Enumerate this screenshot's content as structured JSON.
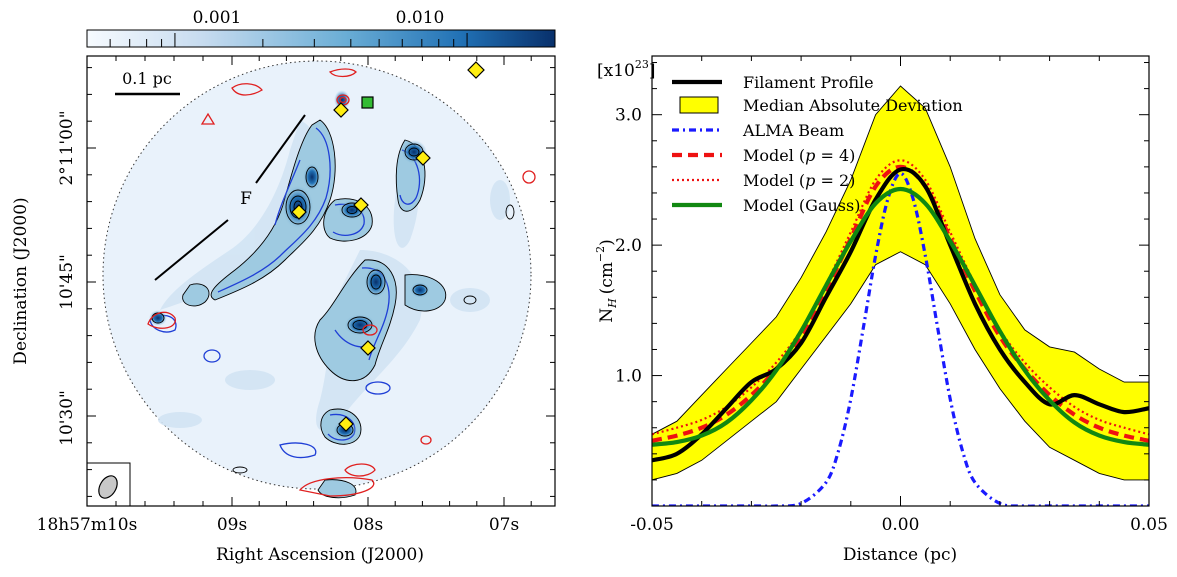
{
  "chart_data": [
    {
      "type": "heatmap",
      "colorbar": {
        "tick_labels": [
          "0.001",
          "0.010"
        ],
        "colors": [
          "#f7fbff",
          "#c6dbef",
          "#6baed6",
          "#2171b5",
          "#08306b"
        ]
      },
      "xlabel": "Right Ascension (J2000)",
      "ylabel": "Declination (J2000)",
      "x_tick_labels": [
        "18h57m10s",
        "09s",
        "08s",
        "07s"
      ],
      "y_tick_labels": [
        "2°11'00\"",
        "10'45\"",
        "10'30\""
      ],
      "scalebar_label": "0.1 pc",
      "filament_label": "F",
      "contour_colors": {
        "dust": "#000000",
        "molecular": "#1f3fd6",
        "other": "#e02020"
      },
      "marker_colors": {
        "diamond": "#ffee11",
        "square": "#33bb33"
      }
    },
    {
      "type": "line",
      "ylabel_main": "N",
      "ylabel_sub": "H",
      "ylabel_unit": "(cm",
      "ylabel_exp": "−2",
      "ylabel_close": ")",
      "xlabel": "Distance (pc)",
      "y_multiplier_base": "[x10",
      "y_multiplier_exp": "23",
      "y_multiplier_close": "]",
      "xlim": [
        -0.05,
        0.05
      ],
      "ylim": [
        0.0,
        3.45
      ],
      "x_ticks": [
        -0.05,
        0.0,
        0.05
      ],
      "x_tick_labels": [
        "-0.05",
        "0.00",
        "0.05"
      ],
      "y_ticks": [
        1.0,
        2.0,
        3.0
      ],
      "y_tick_labels": [
        "1.0",
        "2.0",
        "3.0"
      ],
      "legend_position": "top-left",
      "mad_band": {
        "name": "Median Absolute Deviation",
        "color": "#ffff00",
        "x": [
          -0.05,
          -0.045,
          -0.04,
          -0.035,
          -0.03,
          -0.025,
          -0.02,
          -0.015,
          -0.01,
          -0.005,
          0.0,
          0.005,
          0.01,
          0.015,
          0.02,
          0.025,
          0.03,
          0.035,
          0.04,
          0.045,
          0.05
        ],
        "upper": [
          0.55,
          0.65,
          0.85,
          1.05,
          1.25,
          1.45,
          1.75,
          2.1,
          2.5,
          3.0,
          3.22,
          3.05,
          2.6,
          2.05,
          1.62,
          1.35,
          1.22,
          1.18,
          1.05,
          0.95,
          0.95
        ],
        "lower": [
          0.2,
          0.25,
          0.35,
          0.5,
          0.65,
          0.8,
          1.05,
          1.3,
          1.55,
          1.85,
          1.95,
          1.85,
          1.55,
          1.2,
          0.9,
          0.65,
          0.45,
          0.35,
          0.25,
          0.2,
          0.2
        ]
      },
      "series": [
        {
          "name": "Filament Profile",
          "color": "#000000",
          "dash": "",
          "width": 4.2,
          "x": [
            -0.05,
            -0.045,
            -0.04,
            -0.035,
            -0.03,
            -0.025,
            -0.02,
            -0.015,
            -0.01,
            -0.005,
            0.0,
            0.005,
            0.01,
            0.015,
            0.02,
            0.025,
            0.03,
            0.035,
            0.04,
            0.045,
            0.05
          ],
          "y": [
            0.35,
            0.4,
            0.55,
            0.75,
            0.95,
            1.05,
            1.25,
            1.6,
            1.95,
            2.35,
            2.58,
            2.45,
            2.0,
            1.55,
            1.2,
            0.95,
            0.78,
            0.85,
            0.78,
            0.72,
            0.75
          ]
        },
        {
          "name": "ALMA Beam",
          "color": "#1a1aff",
          "dash": "7,4,2,4",
          "width": 3.2,
          "x": [
            -0.05,
            -0.03,
            -0.025,
            -0.02,
            -0.015,
            -0.0125,
            -0.01,
            -0.0075,
            -0.005,
            -0.0025,
            0.0,
            0.0025,
            0.005,
            0.0075,
            0.01,
            0.0125,
            0.015,
            0.02,
            0.025,
            0.03,
            0.05
          ],
          "y": [
            0.0,
            0.0,
            0.0,
            0.02,
            0.18,
            0.42,
            0.82,
            1.36,
            1.92,
            2.36,
            2.55,
            2.36,
            1.92,
            1.36,
            0.82,
            0.42,
            0.18,
            0.02,
            0.0,
            0.0,
            0.0
          ]
        },
        {
          "name": "Model (p = 4)",
          "color": "#ee1111",
          "dash": "10,6",
          "width": 4.2,
          "x": [
            -0.05,
            -0.045,
            -0.04,
            -0.035,
            -0.03,
            -0.025,
            -0.02,
            -0.015,
            -0.01,
            -0.005,
            0.0,
            0.005,
            0.01,
            0.015,
            0.02,
            0.025,
            0.03,
            0.035,
            0.04,
            0.045,
            0.05
          ],
          "y": [
            0.5,
            0.54,
            0.6,
            0.7,
            0.85,
            1.05,
            1.3,
            1.65,
            2.05,
            2.45,
            2.6,
            2.45,
            2.05,
            1.65,
            1.3,
            1.05,
            0.85,
            0.7,
            0.6,
            0.54,
            0.5
          ]
        },
        {
          "name": "Model (p = 2)",
          "color": "#ee1111",
          "dash": "2,3",
          "width": 2.2,
          "x": [
            -0.05,
            -0.045,
            -0.04,
            -0.035,
            -0.03,
            -0.025,
            -0.02,
            -0.015,
            -0.01,
            -0.005,
            0.0,
            0.005,
            0.01,
            0.015,
            0.02,
            0.025,
            0.03,
            0.035,
            0.04,
            0.045,
            0.05
          ],
          "y": [
            0.55,
            0.6,
            0.66,
            0.76,
            0.91,
            1.1,
            1.35,
            1.7,
            2.1,
            2.5,
            2.65,
            2.5,
            2.1,
            1.7,
            1.35,
            1.1,
            0.91,
            0.76,
            0.66,
            0.6,
            0.55
          ]
        },
        {
          "name": "Model (Gauss)",
          "color": "#118811",
          "dash": "",
          "width": 4.2,
          "x": [
            -0.05,
            -0.045,
            -0.04,
            -0.035,
            -0.03,
            -0.025,
            -0.02,
            -0.015,
            -0.01,
            -0.005,
            0.0,
            0.005,
            0.01,
            0.015,
            0.02,
            0.025,
            0.03,
            0.035,
            0.04,
            0.045,
            0.05
          ],
          "y": [
            0.47,
            0.49,
            0.54,
            0.64,
            0.81,
            1.04,
            1.34,
            1.69,
            2.03,
            2.32,
            2.43,
            2.32,
            2.03,
            1.69,
            1.34,
            1.04,
            0.81,
            0.64,
            0.54,
            0.49,
            0.47
          ]
        }
      ],
      "legend_entries": [
        {
          "label": "Filament Profile"
        },
        {
          "label": "Median Absolute Deviation"
        },
        {
          "label": "ALMA Beam"
        },
        {
          "label_pre": "Model (",
          "label_ital": "p",
          "label_post": " = 4)"
        },
        {
          "label_pre": "Model (",
          "label_ital": "p",
          "label_post": " = 2)"
        },
        {
          "label": "Model (Gauss)"
        }
      ]
    }
  ]
}
